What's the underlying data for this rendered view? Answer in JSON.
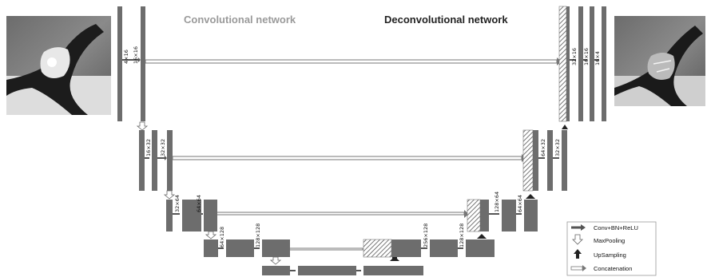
{
  "titles": {
    "encoder": "Convolutional network",
    "decoder": "Deconvolutional network"
  },
  "dims": {
    "enc1": [
      "4×16",
      "16×16"
    ],
    "enc2": [
      "16×32",
      "32×32"
    ],
    "enc3": [
      "32×64",
      "64×64"
    ],
    "enc4": [
      "64×128",
      "128×128"
    ],
    "dec4": [
      "256×128",
      "128×128"
    ],
    "dec3": [
      "128×64",
      "64×64"
    ],
    "dec2": [
      "64×32",
      "32×32"
    ],
    "dec1": [
      "32×16",
      "16×16",
      "16×4"
    ]
  },
  "legend": {
    "conv": "Conv+BN+ReLU",
    "pool": "MaxPooling",
    "up": "UpSampling",
    "concat": "Concatenation"
  },
  "images": {
    "input": "input-mri-slice",
    "output": "segmentation-output-slice"
  }
}
